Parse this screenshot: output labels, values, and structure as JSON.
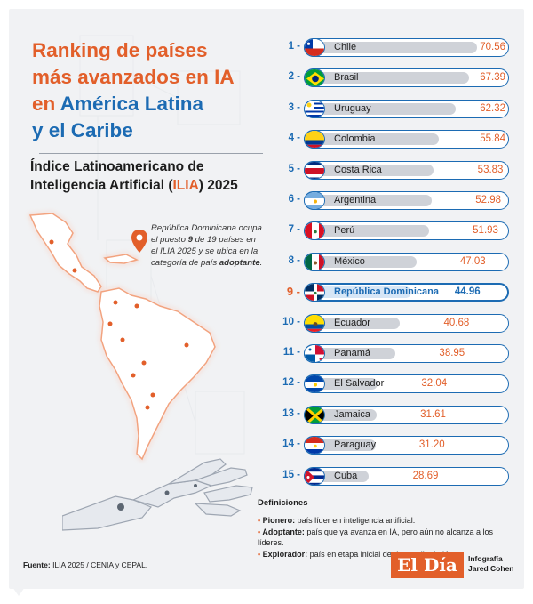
{
  "title": {
    "line1": "Ranking de países",
    "line2": "más avanzados en IA",
    "line3_pre": "en ",
    "line3_hl": "América Latina",
    "line4": "y el Caribe"
  },
  "subtitle": {
    "line1": "Índice Latinoamericano de",
    "line2_pre": "Inteligencia Artificial (",
    "line2_hl": "ILIA",
    "line2_post": ") 2025"
  },
  "map_note": {
    "part1": "República Dominicana ocupa el puesto ",
    "rank": "9",
    "part2": " de 19 países en el ILIA 2025 y se ubica en la categoría de país ",
    "category": "adoptante",
    "part3": "."
  },
  "colors": {
    "orange": "#e25f2a",
    "blue": "#1c6bb3",
    "bar": "#cfd2d8"
  },
  "chart_data": {
    "type": "bar",
    "orientation": "horizontal",
    "categories": [
      "Chile",
      "Brasil",
      "Uruguay",
      "Colombia",
      "Costa Rica",
      "Argentina",
      "Perú",
      "México",
      "República Dominicana",
      "Ecuador",
      "Panamá",
      "El Salvador",
      "Jamaica",
      "Paraguay",
      "Cuba"
    ],
    "values": [
      70.56,
      67.39,
      62.32,
      55.84,
      53.83,
      52.98,
      51.93,
      47.03,
      44.96,
      40.68,
      38.95,
      32.04,
      31.61,
      31.2,
      28.69
    ],
    "value_labels": [
      "70.56",
      "67.39",
      "62.32",
      "55.84",
      "53.83",
      "52.98",
      "51.93",
      "47.03",
      "44.96",
      "40.68",
      "38.95",
      "32.04",
      "31.61",
      "31.20",
      "28.69"
    ],
    "ranks": [
      "1 -",
      "2 -",
      "3 -",
      "4 -",
      "5 -",
      "6 -",
      "7 -",
      "8 -",
      "9 -",
      "10 -",
      "11 -",
      "12 -",
      "13 -",
      "14 -",
      "15 -"
    ],
    "flags": [
      "chile-flag-icon",
      "brazil-flag-icon",
      "uruguay-flag-icon",
      "colombia-flag-icon",
      "costa-rica-flag-icon",
      "argentina-flag-icon",
      "peru-flag-icon",
      "mexico-flag-icon",
      "dominican-republic-flag-icon",
      "ecuador-flag-icon",
      "panama-flag-icon",
      "el-salvador-flag-icon",
      "jamaica-flag-icon",
      "paraguay-flag-icon",
      "cuba-flag-icon"
    ],
    "highlight": "República Dominicana",
    "xlim": [
      0,
      75
    ],
    "title": "",
    "xlabel": "",
    "ylabel": "",
    "grid": false
  },
  "definitions": {
    "title": "Definiciones",
    "items": [
      {
        "term": "Pionero:",
        "text": " país líder en inteligencia artificial."
      },
      {
        "term": "Adoptante:",
        "text": " país que ya avanza en IA, pero aún no alcanza a los líderes."
      },
      {
        "term": "Explorador:",
        "text": " país en etapa inicial de desarrollo de IA."
      }
    ]
  },
  "source": {
    "label": "Fuente:",
    "text": " ILIA 2025 / CENIA y CEPAL."
  },
  "logo": "El Día",
  "credit": {
    "line1": "Infografía",
    "line2": "Jared Cohen"
  }
}
